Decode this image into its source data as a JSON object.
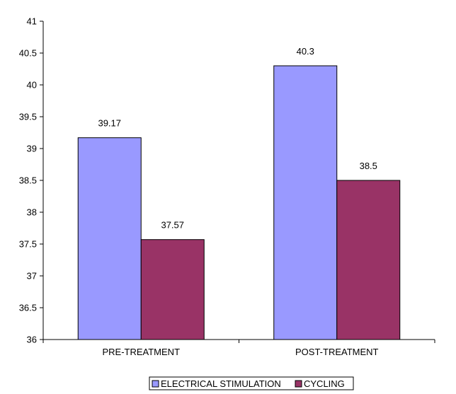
{
  "chart_data": {
    "type": "bar",
    "categories": [
      "PRE-TREATMENT",
      "POST-TREATMENT"
    ],
    "series": [
      {
        "name": "ELECTRICAL STIMULATION",
        "values": [
          39.17,
          40.3
        ],
        "color": "#9999ff"
      },
      {
        "name": "CYCLING",
        "values": [
          37.57,
          38.5
        ],
        "color": "#993366"
      }
    ],
    "ylim": [
      36,
      41
    ],
    "yticks": [
      "36",
      "36.5",
      "37",
      "37.5",
      "38",
      "38.5",
      "39",
      "39.5",
      "40",
      "40.5",
      "41"
    ],
    "ytick_step": 0.5,
    "grid": false,
    "legend_position": "bottom",
    "title": "",
    "xlabel": "",
    "ylabel": ""
  }
}
